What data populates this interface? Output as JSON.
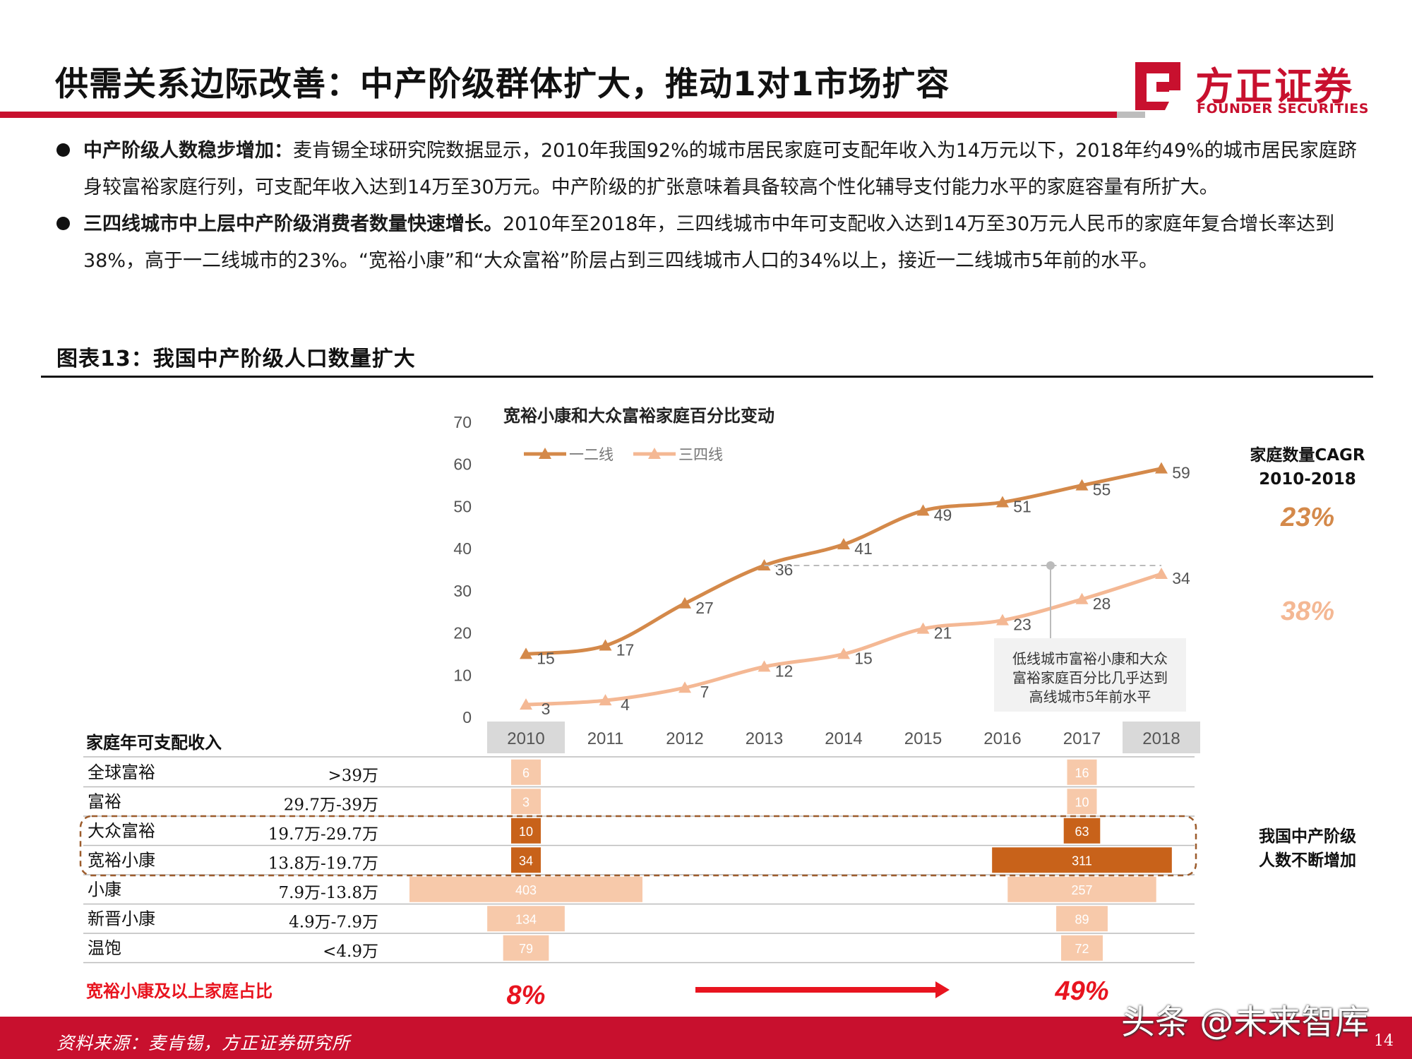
{
  "header": {
    "title": "供需关系边际改善：中产阶级群体扩大，推动1对1市场扩容",
    "logo_cn": "方正证券",
    "logo_en": "FOUNDER SECURITIES",
    "brand_color": "#c8102e"
  },
  "bullets": [
    {
      "lead": "中产阶级人数稳步增加：",
      "text": "麦肯锡全球研究院数据显示，2010年我国92%的城市居民家庭可支配年收入为14万元以下，2018年约49%的城市居民家庭跻身较富裕家庭行列，可支配年收入达到14万至30万元。中产阶级的扩张意味着具备较高个性化辅导支付能力水平的家庭容量有所扩大。"
    },
    {
      "lead": "三四线城市中上层中产阶级消费者数量快速增长。",
      "text": "2010年至2018年，三四线城市中年可支配收入达到14万至30万元人民币的家庭年复合增长率达到38%，高于一二线城市的23%。“宽裕小康”和“大众富裕”阶层占到三四线城市人口的34%以上，接近一二线城市5年前的水平。"
    }
  ],
  "figure": {
    "title": "图表13：我国中产阶级人口数量扩大",
    "source": "资料来源：麦肯锡，方正证券研究所",
    "page_number": "14",
    "watermark": "头条 @未来智库"
  },
  "chart_data": [
    {
      "type": "line",
      "title": "宽裕小康和大众富裕家庭百分比变动",
      "x": [
        "2010",
        "2011",
        "2012",
        "2013",
        "2014",
        "2015",
        "2016",
        "2017",
        "2018"
      ],
      "ylim": [
        0,
        70
      ],
      "yticks": [
        0,
        10,
        20,
        30,
        40,
        50,
        60,
        70
      ],
      "grid": false,
      "legend": "top-left",
      "series": [
        {
          "name": "一二线",
          "values": [
            15,
            17,
            27,
            36,
            41,
            49,
            51,
            55,
            59
          ],
          "color": "#d4894a"
        },
        {
          "name": "三四线",
          "values": [
            3,
            4,
            7,
            12,
            15,
            21,
            23,
            28,
            34
          ],
          "color": "#f4b894"
        }
      ],
      "highlighted_x": [
        "2010",
        "2018"
      ],
      "annotation": "低线城市富裕小康和大众富裕家庭百分比几乎达到高线城市5年前水平",
      "cagr_title": "家庭数量CAGR 2010-2018",
      "cagr": [
        {
          "label": "23%",
          "color": "#d4894a"
        },
        {
          "label": "38%",
          "color": "#f4b894"
        }
      ]
    },
    {
      "type": "bar",
      "title": "家庭年可支配收入",
      "categories": [
        {
          "name": "全球富裕",
          "range": ">39万"
        },
        {
          "name": "富裕",
          "range": "29.7万-39万"
        },
        {
          "name": "大众富裕",
          "range": "19.7万-29.7万"
        },
        {
          "name": "宽裕小康",
          "range": "13.8万-19.7万"
        },
        {
          "name": "小康",
          "range": "7.9万-13.8万"
        },
        {
          "name": "新晋小康",
          "range": "4.9万-7.9万"
        },
        {
          "name": "温饱",
          "range": "<4.9万"
        }
      ],
      "series": [
        {
          "name": "2010",
          "values": [
            6,
            3,
            10,
            34,
            403,
            134,
            79
          ]
        },
        {
          "name": "2017",
          "values": [
            16,
            10,
            63,
            311,
            257,
            89,
            72
          ]
        }
      ],
      "highlight_rows": [
        "大众富裕",
        "宽裕小康"
      ],
      "highlight_note": "我国中产阶级人数不断增加",
      "share_label": "宽裕小康及以上家庭占比",
      "share_values": [
        "8%",
        "49%"
      ],
      "colors": {
        "light": "#f7c9aa",
        "dark": "#c8621a",
        "accent": "#e8141f"
      }
    }
  ]
}
